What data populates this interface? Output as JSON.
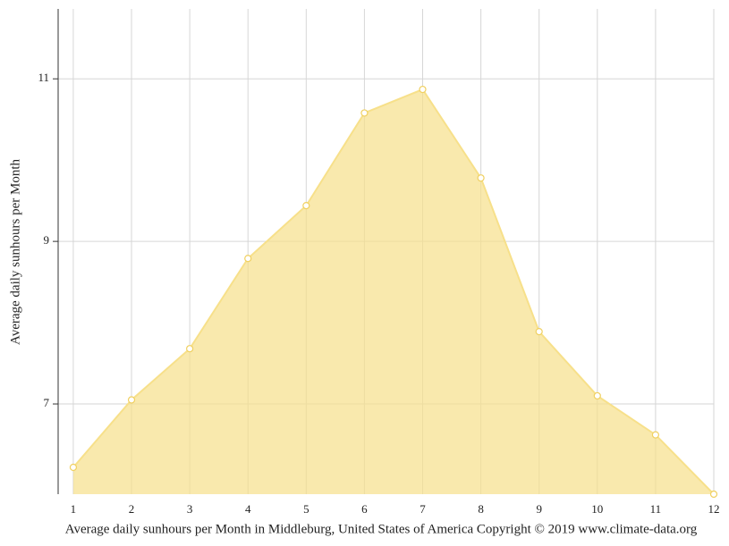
{
  "chart_data": {
    "type": "area",
    "x_label": "Average daily sunhours per Month in Middleburg, United States of America Copyright © 2019 www.climate-data.org",
    "y_label": "Average daily sunhours per Month",
    "x": [
      1,
      2,
      3,
      4,
      5,
      6,
      7,
      8,
      9,
      10,
      11,
      12
    ],
    "values": [
      6.22,
      7.05,
      7.68,
      8.79,
      9.44,
      10.58,
      10.87,
      9.78,
      7.89,
      7.1,
      6.62,
      5.89
    ],
    "color": "#f7e08a",
    "xlim": [
      0.74,
      12
    ],
    "xticks": [
      1,
      2,
      3,
      4,
      5,
      6,
      7,
      8,
      9,
      10,
      11,
      12
    ],
    "ylim": [
      5.89,
      11.86
    ],
    "yticks": [
      7,
      9,
      11
    ],
    "grid": true
  }
}
